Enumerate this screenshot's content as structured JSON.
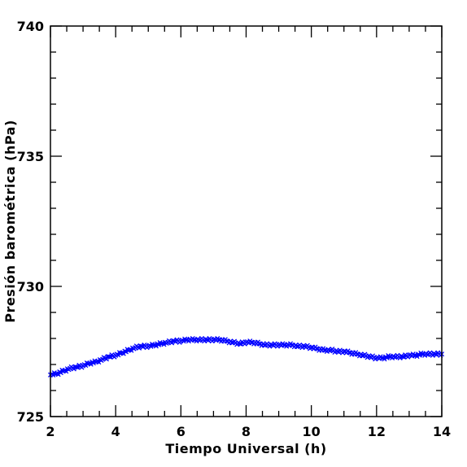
{
  "chart_data": {
    "type": "scatter",
    "title": "",
    "xlabel": "Tiempo Universal (h)",
    "ylabel": "Presión barométrica (hPa)",
    "xlim": [
      2,
      14
    ],
    "ylim": [
      725,
      740
    ],
    "x_ticks": [
      2,
      4,
      6,
      8,
      10,
      12,
      14
    ],
    "x_tick_labels": [
      "2",
      "4",
      "6",
      "8",
      "10",
      "12",
      "14"
    ],
    "y_ticks": [
      725,
      730,
      735,
      740
    ],
    "y_tick_labels": [
      "725",
      "730",
      "735",
      "740"
    ],
    "x_minor_step": 0.5,
    "y_minor_step": 1,
    "grid": false,
    "marker": "x",
    "series_color": "#0000ff",
    "series": [
      {
        "x": [
          2.0,
          2.2,
          2.4,
          2.6,
          2.8,
          3.0,
          3.2,
          3.4,
          3.6,
          3.8,
          4.0,
          4.2,
          4.4,
          4.6,
          4.8,
          5.0,
          5.2,
          5.4,
          5.6,
          5.8,
          6.0,
          6.2,
          6.4,
          6.6,
          6.8,
          7.0,
          7.2,
          7.4,
          7.6,
          7.8,
          8.0,
          8.2,
          8.4,
          8.6,
          8.8,
          9.0,
          9.2,
          9.4,
          9.6,
          9.8,
          10.0,
          10.2,
          10.4,
          10.6,
          10.8,
          11.0,
          11.2,
          11.4,
          11.6,
          11.8,
          12.0,
          12.2,
          12.4,
          12.6,
          12.8,
          13.0,
          13.2,
          13.4,
          13.6,
          13.8,
          14.0
        ],
        "y": [
          726.6,
          726.65,
          726.75,
          726.85,
          726.9,
          726.95,
          727.05,
          727.1,
          727.2,
          727.3,
          727.35,
          727.45,
          727.55,
          727.65,
          727.7,
          727.7,
          727.75,
          727.8,
          727.85,
          727.9,
          727.9,
          727.95,
          727.95,
          727.95,
          727.95,
          727.95,
          727.95,
          727.9,
          727.85,
          727.8,
          727.85,
          727.85,
          727.8,
          727.75,
          727.75,
          727.75,
          727.75,
          727.75,
          727.7,
          727.7,
          727.65,
          727.6,
          727.55,
          727.55,
          727.5,
          727.5,
          727.45,
          727.4,
          727.35,
          727.3,
          727.25,
          727.25,
          727.3,
          727.3,
          727.3,
          727.35,
          727.35,
          727.4,
          727.4,
          727.4,
          727.4
        ]
      }
    ]
  }
}
